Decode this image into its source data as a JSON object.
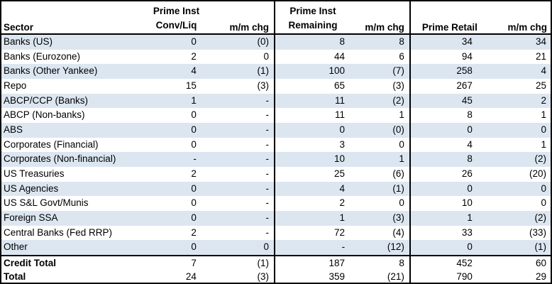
{
  "chart_data": {
    "type": "table",
    "header": {
      "sector": "Sector",
      "groups": [
        {
          "line1": "Prime Inst",
          "line2": "Conv/Liq",
          "chg": "m/m chg"
        },
        {
          "line1": "Prime Inst",
          "line2": "Remaining",
          "chg": "m/m chg"
        },
        {
          "line1": "",
          "line2": "Prime Retail",
          "chg": "m/m chg"
        }
      ]
    },
    "rows": [
      {
        "sector": "Banks (US)",
        "values": [
          "0",
          "(0)",
          "8",
          "8",
          "34",
          "34"
        ]
      },
      {
        "sector": "Banks (Eurozone)",
        "values": [
          "2",
          "0",
          "44",
          "6",
          "94",
          "21"
        ]
      },
      {
        "sector": "Banks (Other Yankee)",
        "values": [
          "4",
          "(1)",
          "100",
          "(7)",
          "258",
          "4"
        ]
      },
      {
        "sector": "Repo",
        "values": [
          "15",
          "(3)",
          "65",
          "(3)",
          "267",
          "25"
        ]
      },
      {
        "sector": "ABCP/CCP (Banks)",
        "values": [
          "1",
          "-",
          "11",
          "(2)",
          "45",
          "2"
        ]
      },
      {
        "sector": "ABCP (Non-banks)",
        "values": [
          "0",
          "-",
          "11",
          "1",
          "8",
          "1"
        ]
      },
      {
        "sector": "ABS",
        "values": [
          "0",
          "-",
          "0",
          "(0)",
          "0",
          "0"
        ]
      },
      {
        "sector": "Corporates (Financial)",
        "values": [
          "0",
          "-",
          "3",
          "0",
          "4",
          "1"
        ]
      },
      {
        "sector": "Corporates (Non-financial)",
        "values": [
          "-",
          "-",
          "10",
          "1",
          "8",
          "(2)"
        ]
      },
      {
        "sector": "US Treasuries",
        "values": [
          "2",
          "-",
          "25",
          "(6)",
          "26",
          "(20)"
        ]
      },
      {
        "sector": "US Agencies",
        "values": [
          "0",
          "-",
          "4",
          "(1)",
          "0",
          "0"
        ]
      },
      {
        "sector": "US S&L Govt/Munis",
        "values": [
          "0",
          "-",
          "2",
          "0",
          "10",
          "0"
        ]
      },
      {
        "sector": "Foreign SSA",
        "values": [
          "0",
          "-",
          "1",
          "(3)",
          "1",
          "(2)"
        ]
      },
      {
        "sector": "Central Banks (Fed RRP)",
        "values": [
          "2",
          "-",
          "72",
          "(4)",
          "33",
          "(33)"
        ]
      },
      {
        "sector": "Other",
        "values": [
          "0",
          "0",
          "-",
          "(12)",
          "0",
          "(1)"
        ]
      }
    ],
    "totals": [
      {
        "sector": "Credit Total",
        "values": [
          "7",
          "(1)",
          "187",
          "8",
          "452",
          "60"
        ]
      },
      {
        "sector": "Total",
        "values": [
          "24",
          "(3)",
          "359",
          "(21)",
          "790",
          "29"
        ]
      }
    ],
    "layout": {
      "stripe_color": "#DCE6F1",
      "border_color": "#000000",
      "background_color": "#FFFFFF",
      "grid": "off",
      "banding": "alternating rows starting with first data row"
    }
  }
}
